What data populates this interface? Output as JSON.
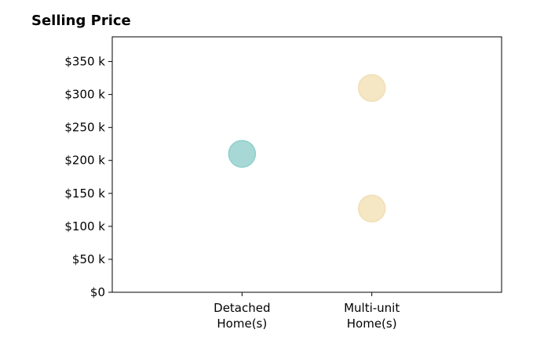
{
  "chart_data": {
    "type": "scatter",
    "title": "Selling Price",
    "xlabel": "",
    "ylabel": "",
    "categories": [
      "Detached\nHome(s)",
      "Multi-unit\nHome(s)"
    ],
    "ylim": [
      0,
      387500
    ],
    "xlim": [
      -1,
      2
    ],
    "y_ticks": [
      0,
      50000,
      100000,
      150000,
      200000,
      250000,
      300000,
      350000
    ],
    "y_tick_labels": [
      "$0",
      "$50 k",
      "$100 k",
      "$150 k",
      "$200 k",
      "$250 k",
      "$300 k",
      "$350 k"
    ],
    "grid": false,
    "legend": "none",
    "points": [
      {
        "category": 0,
        "y": 210000,
        "color": "#a8d8d5",
        "edge": "#8fcfcb"
      },
      {
        "category": 1,
        "y": 310000,
        "color": "#f5e6c4",
        "edge": "#f1dfb6"
      },
      {
        "category": 1,
        "y": 127000,
        "color": "#f5e6c4",
        "edge": "#f1dfb6"
      }
    ]
  }
}
